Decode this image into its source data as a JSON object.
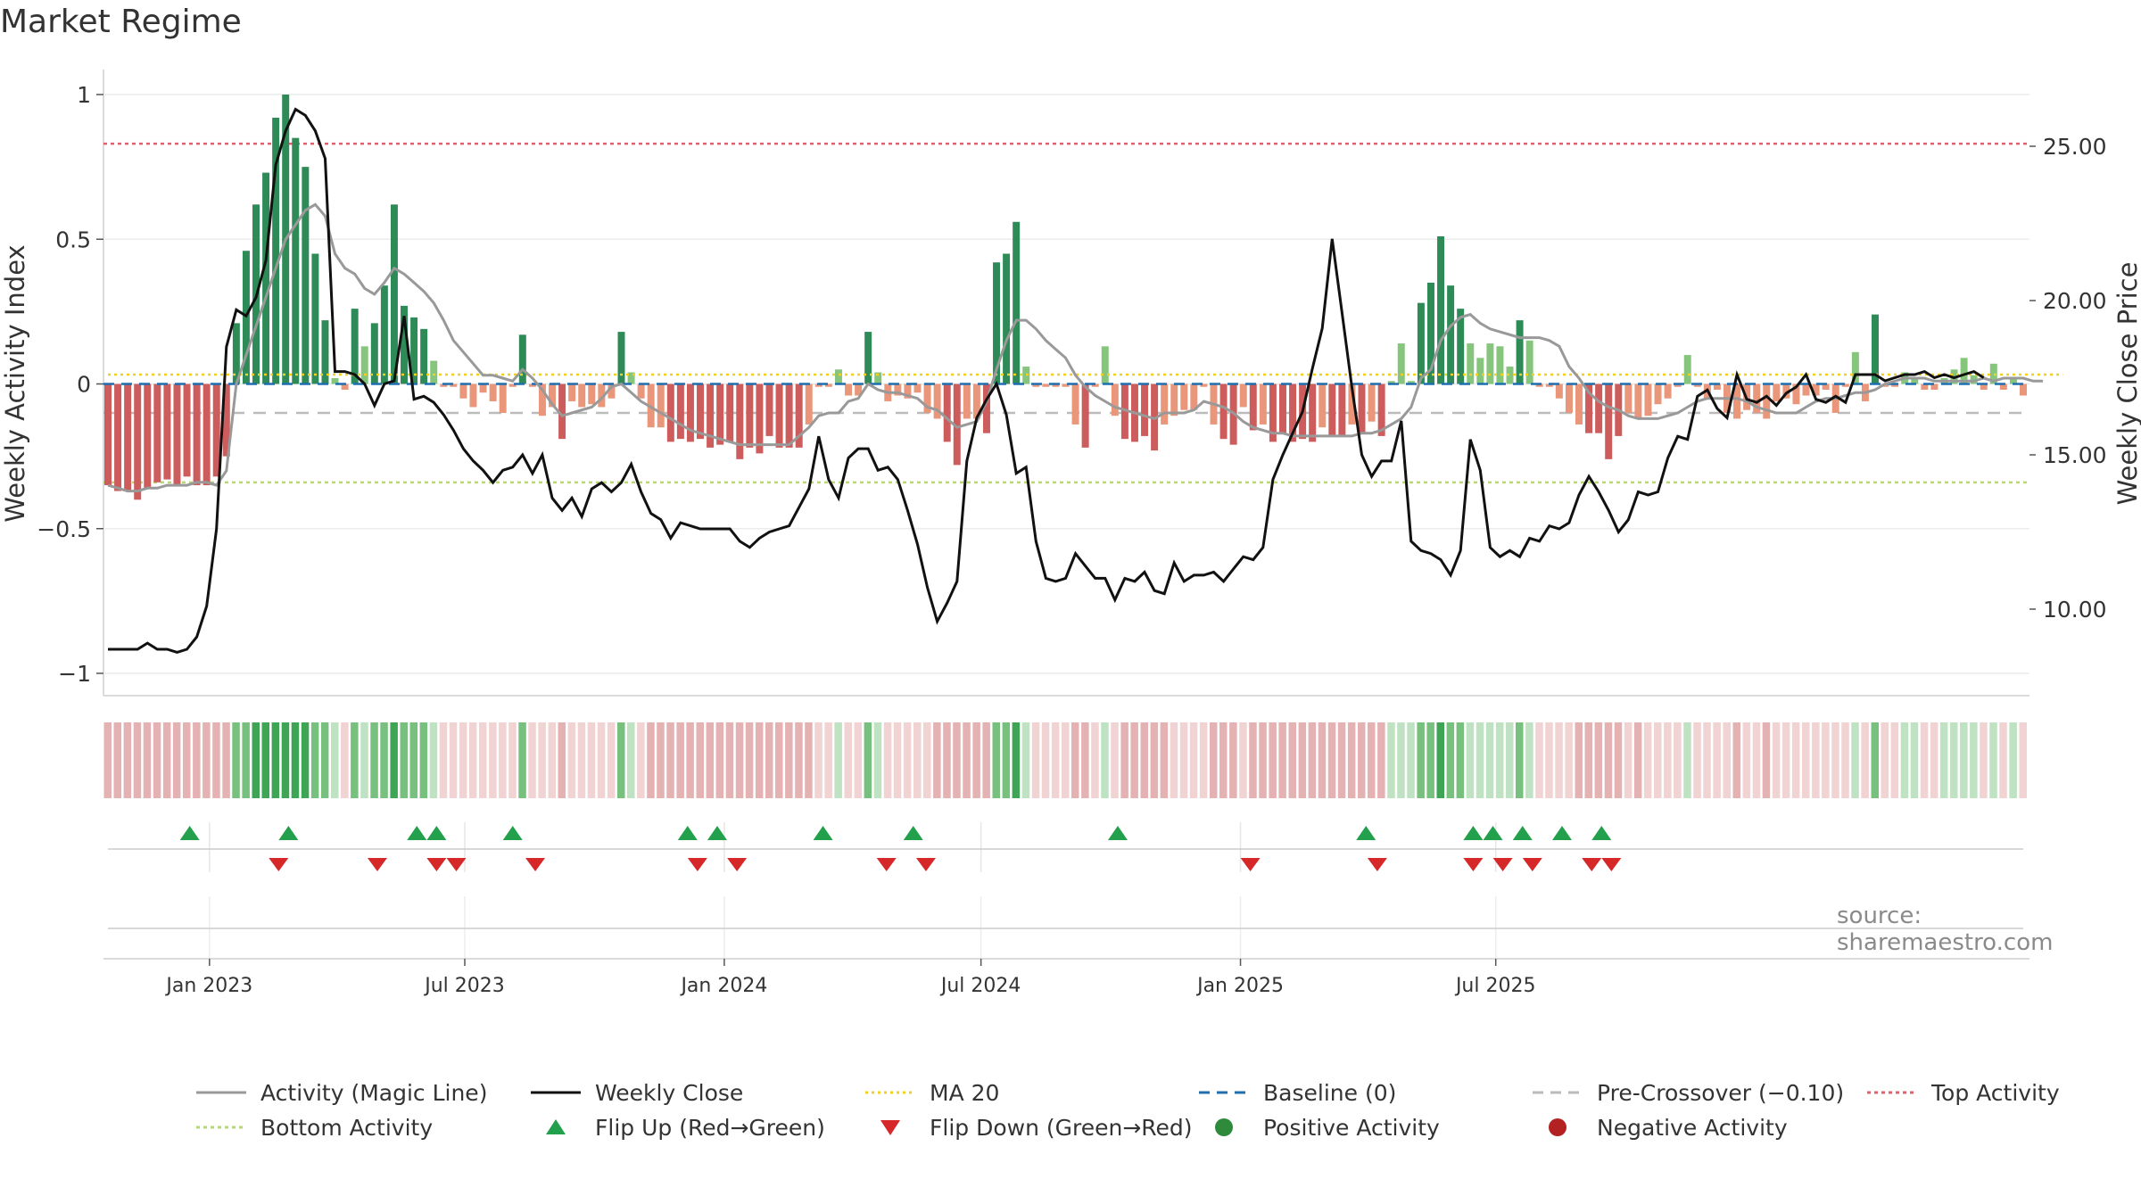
{
  "title": "Market Regime",
  "source": "source: sharemaestro.com",
  "colors": {
    "strong_pos": "#2e8b57",
    "weak_pos": "#86c67c",
    "strong_neg": "#cd5c5c",
    "weak_neg": "#e9967a",
    "close": "#111111",
    "magic": "#999999",
    "ma20": "#f0d020",
    "baseline": "#1f6fb0",
    "pre_cross": "#bbbbbb",
    "top": "#e06070",
    "bottom": "#b8d878",
    "flip_up": "#22a04b",
    "flip_down": "#d62828"
  },
  "chart_data": {
    "type": "bar",
    "ylabel_left": "Weekly Activity Index",
    "ylabel_right": "Weekly Close Price",
    "ylim_left": [
      -1.05,
      1.05
    ],
    "ylim_right": [
      7.7,
      27.2
    ],
    "left_ticks": [
      {
        "v": 1,
        "label": "1"
      },
      {
        "v": 0.5,
        "label": "0.5"
      },
      {
        "v": 0,
        "label": "0"
      },
      {
        "v": -0.5,
        "label": "−0.5"
      },
      {
        "v": -1,
        "label": "−1"
      }
    ],
    "right_ticks": [
      {
        "v": 25,
        "label": "25.00"
      },
      {
        "v": 20,
        "label": "20.00"
      },
      {
        "v": 15,
        "label": "15.00"
      },
      {
        "v": 10,
        "label": "10.00"
      }
    ],
    "x_start": "2022-10-21",
    "x_ticks": [
      {
        "date": "2023-01-01",
        "label": "Jan 2023"
      },
      {
        "date": "2023-07-01",
        "label": "Jul 2023"
      },
      {
        "date": "2024-01-01",
        "label": "Jan 2024"
      },
      {
        "date": "2024-07-01",
        "label": "Jul 2024"
      },
      {
        "date": "2025-01-01",
        "label": "Jan 2025"
      },
      {
        "date": "2025-07-01",
        "label": "Jul 2025"
      }
    ],
    "reference_lines": {
      "top_activity": 0.83,
      "bottom_activity": -0.34,
      "baseline": 0,
      "pre_crossover": -0.1
    },
    "activity": [
      -0.35,
      -0.37,
      -0.37,
      -0.4,
      -0.36,
      -0.34,
      -0.33,
      -0.35,
      -0.32,
      -0.35,
      -0.35,
      -0.32,
      -0.25,
      0.21,
      0.46,
      0.62,
      0.73,
      0.92,
      1.0,
      0.85,
      0.75,
      0.45,
      0.22,
      0.02,
      -0.02,
      0.26,
      0.13,
      0.21,
      0.34,
      0.62,
      0.27,
      0.23,
      0.19,
      0.08,
      -0.01,
      -0.01,
      -0.05,
      -0.08,
      -0.03,
      -0.06,
      -0.1,
      -0.01,
      0.17,
      -0.01,
      -0.11,
      -0.08,
      -0.19,
      -0.06,
      -0.08,
      -0.07,
      -0.08,
      -0.05,
      0.18,
      0.04,
      -0.05,
      -0.15,
      -0.15,
      -0.2,
      -0.19,
      -0.2,
      -0.19,
      -0.22,
      -0.21,
      -0.2,
      -0.26,
      -0.22,
      -0.24,
      -0.18,
      -0.22,
      -0.22,
      -0.22,
      -0.14,
      -0.01,
      -0.01,
      0.05,
      -0.04,
      -0.04,
      0.18,
      0.04,
      -0.06,
      -0.04,
      -0.05,
      -0.03,
      -0.1,
      -0.12,
      -0.2,
      -0.28,
      -0.12,
      -0.12,
      -0.17,
      0.42,
      0.45,
      0.56,
      0.06,
      -0.01,
      -0.01,
      -0.01,
      -0.01,
      -0.14,
      -0.22,
      -0.01,
      0.13,
      -0.11,
      -0.19,
      -0.2,
      -0.18,
      -0.23,
      -0.14,
      -0.11,
      -0.09,
      -0.09,
      -0.01,
      -0.14,
      -0.19,
      -0.21,
      -0.08,
      -0.16,
      -0.14,
      -0.2,
      -0.17,
      -0.2,
      -0.19,
      -0.2,
      -0.15,
      -0.18,
      -0.18,
      -0.14,
      -0.17,
      -0.13,
      -0.18,
      0.01,
      0.14,
      0.01,
      0.28,
      0.35,
      0.51,
      0.34,
      0.26,
      0.14,
      0.09,
      0.14,
      0.13,
      0.06,
      0.22,
      0.15,
      -0.01,
      -0.01,
      -0.05,
      -0.1,
      -0.14,
      -0.17,
      -0.17,
      -0.26,
      -0.18,
      -0.1,
      -0.12,
      -0.11,
      -0.07,
      -0.05,
      -0.01,
      0.1,
      -0.01,
      -0.05,
      -0.02,
      -0.1,
      -0.12,
      -0.09,
      -0.1,
      -0.12,
      -0.06,
      -0.05,
      -0.07,
      -0.04,
      -0.04,
      -0.02,
      -0.1,
      -0.01,
      0.11,
      -0.06,
      0.24,
      -0.01,
      -0.01,
      0.04,
      0.02,
      -0.02,
      -0.02,
      0.02,
      0.05,
      0.09,
      0.03,
      -0.02,
      0.07,
      -0.02,
      0.02,
      -0.04
    ],
    "magic_line": [
      -0.35,
      -0.36,
      -0.37,
      -0.37,
      -0.36,
      -0.36,
      -0.35,
      -0.35,
      -0.35,
      -0.34,
      -0.34,
      -0.35,
      -0.3,
      0.0,
      0.1,
      0.2,
      0.3,
      0.4,
      0.5,
      0.55,
      0.6,
      0.62,
      0.58,
      0.45,
      0.4,
      0.38,
      0.33,
      0.31,
      0.35,
      0.4,
      0.38,
      0.35,
      0.32,
      0.28,
      0.22,
      0.15,
      0.11,
      0.07,
      0.03,
      0.03,
      0.02,
      0.01,
      0.05,
      0.02,
      -0.02,
      -0.07,
      -0.11,
      -0.1,
      -0.09,
      -0.08,
      -0.05,
      -0.01,
      0.0,
      -0.03,
      -0.06,
      -0.08,
      -0.1,
      -0.12,
      -0.14,
      -0.16,
      -0.17,
      -0.18,
      -0.19,
      -0.2,
      -0.21,
      -0.21,
      -0.21,
      -0.21,
      -0.21,
      -0.21,
      -0.18,
      -0.15,
      -0.11,
      -0.1,
      -0.1,
      -0.06,
      -0.05,
      0.0,
      -0.02,
      -0.03,
      -0.03,
      -0.04,
      -0.05,
      -0.08,
      -0.09,
      -0.12,
      -0.15,
      -0.14,
      -0.13,
      -0.06,
      0.05,
      0.15,
      0.22,
      0.22,
      0.19,
      0.15,
      0.12,
      0.09,
      0.03,
      -0.01,
      -0.04,
      -0.06,
      -0.08,
      -0.09,
      -0.1,
      -0.11,
      -0.12,
      -0.1,
      -0.1,
      -0.1,
      -0.09,
      -0.06,
      -0.07,
      -0.08,
      -0.1,
      -0.13,
      -0.15,
      -0.16,
      -0.17,
      -0.17,
      -0.18,
      -0.18,
      -0.18,
      -0.18,
      -0.18,
      -0.18,
      -0.18,
      -0.17,
      -0.17,
      -0.16,
      -0.14,
      -0.12,
      -0.08,
      0.02,
      0.05,
      0.15,
      0.2,
      0.23,
      0.24,
      0.21,
      0.19,
      0.18,
      0.17,
      0.16,
      0.16,
      0.16,
      0.15,
      0.13,
      0.06,
      0.02,
      -0.03,
      -0.06,
      -0.08,
      -0.09,
      -0.11,
      -0.12,
      -0.12,
      -0.12,
      -0.11,
      -0.1,
      -0.08,
      -0.06,
      -0.05,
      -0.05,
      -0.05,
      -0.05,
      -0.06,
      -0.08,
      -0.09,
      -0.1,
      -0.1,
      -0.1,
      -0.08,
      -0.06,
      -0.05,
      -0.05,
      -0.04,
      -0.03,
      -0.03,
      -0.02,
      0.0,
      0.01,
      0.02,
      0.02,
      0.02,
      0.01,
      0.01,
      0.01,
      0.01,
      0.01,
      0.02,
      0.01,
      0.02,
      0.02,
      0.02,
      0.01,
      0.01
    ],
    "close": [
      8.7,
      8.7,
      8.7,
      8.7,
      8.9,
      8.7,
      8.7,
      8.6,
      8.7,
      9.1,
      10.1,
      12.6,
      18.5,
      19.7,
      19.5,
      20.1,
      21.3,
      24.4,
      25.5,
      26.2,
      26.0,
      25.5,
      24.6,
      17.7,
      17.7,
      17.6,
      17.3,
      16.6,
      17.3,
      17.4,
      19.5,
      16.8,
      16.9,
      16.7,
      16.3,
      15.8,
      15.2,
      14.8,
      14.5,
      14.1,
      14.5,
      14.6,
      15.0,
      14.4,
      15.0,
      13.6,
      13.2,
      13.6,
      13.0,
      13.9,
      14.1,
      13.8,
      14.1,
      14.7,
      13.8,
      13.1,
      12.9,
      12.3,
      12.8,
      12.7,
      12.6,
      12.6,
      12.6,
      12.6,
      12.2,
      12.0,
      12.3,
      12.5,
      12.6,
      12.7,
      13.3,
      13.9,
      15.6,
      14.2,
      13.6,
      14.9,
      15.2,
      15.2,
      14.5,
      14.6,
      14.2,
      13.2,
      12.1,
      10.7,
      9.6,
      10.2,
      10.9,
      14.8,
      16.2,
      16.8,
      17.3,
      16.3,
      14.4,
      14.6,
      12.2,
      11.0,
      10.9,
      11.0,
      11.8,
      11.4,
      11.0,
      11.0,
      10.3,
      11.0,
      10.9,
      11.2,
      10.6,
      10.5,
      11.5,
      10.9,
      11.1,
      11.1,
      11.2,
      10.9,
      11.3,
      11.7,
      11.6,
      12.0,
      14.2,
      15.0,
      15.7,
      16.4,
      17.8,
      19.1,
      22.0,
      19.6,
      17.2,
      15.0,
      14.3,
      14.8,
      14.8,
      16.1,
      12.2,
      11.9,
      11.8,
      11.6,
      11.1,
      11.9,
      15.5,
      14.5,
      12.0,
      11.7,
      11.9,
      11.7,
      12.3,
      12.2,
      12.7,
      12.6,
      12.8,
      13.7,
      14.3,
      13.8,
      13.2,
      12.5,
      12.9,
      13.8,
      13.7,
      13.8,
      14.9,
      15.6,
      15.5,
      16.9,
      17.1,
      16.5,
      16.2,
      17.6,
      16.8,
      16.7,
      16.9,
      16.6,
      17.0,
      17.2,
      17.6,
      16.8,
      16.7,
      16.9,
      16.7,
      17.6,
      17.6,
      17.6,
      17.4,
      17.5,
      17.6,
      17.6,
      17.7,
      17.5,
      17.6,
      17.5,
      17.6,
      17.7,
      17.5
    ],
    "ma20": [
      17.6,
      17.6,
      17.6,
      17.6,
      17.6,
      17.6,
      17.6,
      17.6,
      17.6,
      17.6,
      17.6,
      17.6,
      17.6,
      17.6,
      17.6,
      17.6,
      17.6,
      17.6,
      17.6,
      17.6,
      17.6,
      17.6,
      17.6,
      17.6,
      17.6,
      17.6,
      17.6,
      17.6,
      17.6,
      17.6,
      17.6,
      17.6,
      17.6,
      17.6,
      17.6,
      17.6,
      17.6,
      17.6,
      17.6,
      17.6,
      17.6,
      17.6,
      17.6,
      17.6,
      17.6,
      17.6,
      17.6,
      17.6,
      17.6,
      17.6,
      17.6,
      17.6,
      17.6,
      17.6,
      17.6,
      17.6,
      17.6,
      17.6,
      17.6,
      17.6,
      17.6,
      17.6,
      17.6,
      17.6,
      17.6,
      17.6,
      17.6,
      17.6,
      17.6,
      17.6,
      17.6,
      17.6,
      17.6,
      17.6,
      17.6,
      17.6,
      17.6,
      17.6,
      17.6,
      17.6,
      17.6,
      17.6,
      17.6,
      17.6,
      17.6,
      17.6,
      17.6,
      17.6,
      17.6,
      17.6,
      17.6,
      17.6,
      17.6,
      17.6,
      17.6,
      17.6,
      17.6,
      17.6,
      17.6,
      17.6,
      17.6,
      17.6,
      17.6,
      17.6,
      17.6,
      17.6,
      17.6,
      17.6,
      17.6,
      17.6,
      17.6,
      17.6,
      17.6,
      17.6,
      17.6,
      17.6,
      17.6,
      17.6,
      17.6,
      17.6,
      17.6,
      17.6,
      17.6,
      17.6,
      17.6,
      17.6,
      17.6,
      17.6,
      17.6,
      17.6,
      17.6,
      17.6,
      17.6,
      17.6,
      17.6,
      17.6,
      17.6,
      17.6,
      17.6,
      17.6,
      17.6,
      17.6,
      17.6,
      17.6,
      17.6,
      17.6,
      17.6,
      17.6,
      17.6,
      17.6,
      17.6,
      17.6,
      17.6,
      17.6,
      17.6,
      17.6,
      17.6,
      17.6,
      17.6,
      17.6,
      17.6,
      17.6,
      17.6,
      17.6,
      17.6,
      17.6,
      17.6,
      17.6,
      17.6,
      17.6,
      17.6,
      17.6,
      17.6,
      17.6,
      17.6,
      17.6,
      17.6,
      17.6,
      17.6,
      17.6,
      17.6,
      17.6,
      17.6,
      17.6,
      17.6,
      17.6,
      17.6,
      17.6,
      17.6,
      17.6,
      17.6,
      17.6,
      17.6,
      17.6,
      17.6,
      17.6,
      17.6,
      17.6,
      17.6
    ],
    "flip_up_dates": [
      "2022-12-18",
      "2023-02-26",
      "2023-05-28",
      "2023-06-11",
      "2023-08-04",
      "2023-12-06",
      "2023-12-27",
      "2024-03-11",
      "2024-05-14",
      "2024-10-06",
      "2025-03-31",
      "2025-06-15",
      "2025-06-29",
      "2025-07-20",
      "2025-08-17",
      "2025-09-14"
    ],
    "flip_down_dates": [
      "2023-02-19",
      "2023-04-30",
      "2023-06-11",
      "2023-06-25",
      "2023-08-20",
      "2023-12-13",
      "2024-01-10",
      "2024-04-25",
      "2024-05-23",
      "2025-01-08",
      "2025-04-08",
      "2025-06-15",
      "2025-07-06",
      "2025-07-27",
      "2025-09-07",
      "2025-09-21"
    ]
  },
  "legend": [
    {
      "label": "Activity (Magic Line)",
      "type": "line",
      "color": "#999999",
      "dash": ""
    },
    {
      "label": "Weekly Close",
      "type": "line",
      "color": "#111111",
      "dash": ""
    },
    {
      "label": "MA 20",
      "type": "line",
      "color": "#f0d020",
      "dash": "3 4"
    },
    {
      "label": "Baseline (0)",
      "type": "line",
      "color": "#1f6fb0",
      "dash": "12 8"
    },
    {
      "label": "Pre-Crossover (−0.10)",
      "type": "line",
      "color": "#bbbbbb",
      "dash": "12 8"
    },
    {
      "label": "Top Activity",
      "type": "line",
      "color": "#e06070",
      "dash": "4 4"
    },
    {
      "label": "Bottom Activity",
      "type": "line",
      "color": "#b8d878",
      "dash": "4 4"
    },
    {
      "label": "Flip Up (Red→Green)",
      "type": "up",
      "color": "#22a04b",
      "dash": ""
    },
    {
      "label": "Flip Down (Green→Red)",
      "type": "down",
      "color": "#d62828",
      "dash": ""
    },
    {
      "label": "Positive Activity",
      "type": "dot",
      "color": "#2e8b3c",
      "dash": ""
    },
    {
      "label": "Negative Activity",
      "type": "dot",
      "color": "#b22222",
      "dash": ""
    }
  ]
}
